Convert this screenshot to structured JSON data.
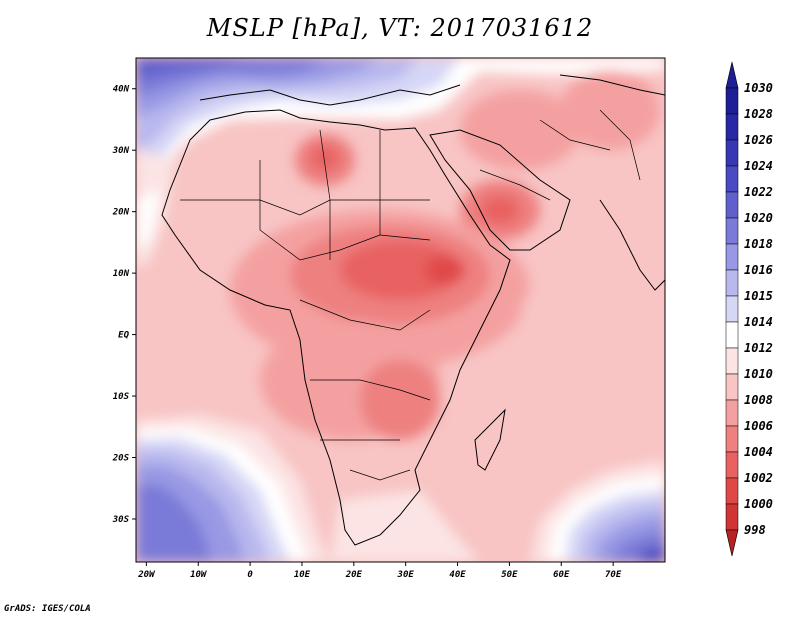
{
  "title": "MSLP [hPa], VT: 2017031612",
  "credit": "GrADS: IGES/COLA",
  "map": {
    "lon_range": [
      -22,
      80
    ],
    "lat_range": [
      -37,
      45
    ],
    "lon_ticks": [
      {
        "value": -20,
        "label": "20W"
      },
      {
        "value": -10,
        "label": "10W"
      },
      {
        "value": 0,
        "label": "0"
      },
      {
        "value": 10,
        "label": "10E"
      },
      {
        "value": 20,
        "label": "20E"
      },
      {
        "value": 30,
        "label": "30E"
      },
      {
        "value": 40,
        "label": "40E"
      },
      {
        "value": 50,
        "label": "50E"
      },
      {
        "value": 60,
        "label": "60E"
      },
      {
        "value": 70,
        "label": "70E"
      }
    ],
    "lat_ticks": [
      {
        "value": 40,
        "label": "40N"
      },
      {
        "value": 30,
        "label": "30N"
      },
      {
        "value": 20,
        "label": "20N"
      },
      {
        "value": 10,
        "label": "10N"
      },
      {
        "value": 0,
        "label": "EQ"
      },
      {
        "value": -10,
        "label": "10S"
      },
      {
        "value": -20,
        "label": "20S"
      },
      {
        "value": -30,
        "label": "30S"
      }
    ]
  },
  "colorbar": {
    "levels": [
      {
        "label": "1030",
        "color": "#1e1e96"
      },
      {
        "label": "1028",
        "color": "#2828a6"
      },
      {
        "label": "1026",
        "color": "#3737b4"
      },
      {
        "label": "1024",
        "color": "#4a4ac2"
      },
      {
        "label": "1022",
        "color": "#6060cc"
      },
      {
        "label": "1020",
        "color": "#7a7ad8"
      },
      {
        "label": "1018",
        "color": "#9898e4"
      },
      {
        "label": "1016",
        "color": "#b8b8ee"
      },
      {
        "label": "1015",
        "color": "#d6d6f6"
      },
      {
        "label": "1014",
        "color": "#ffffff"
      },
      {
        "label": "1012",
        "color": "#fce4e4"
      },
      {
        "label": "1010",
        "color": "#f8c4c4"
      },
      {
        "label": "1008",
        "color": "#f4a0a0"
      },
      {
        "label": "1006",
        "color": "#ee8080"
      },
      {
        "label": "1004",
        "color": "#e86262"
      },
      {
        "label": "1002",
        "color": "#e04848"
      },
      {
        "label": "1000",
        "color": "#d03434"
      },
      {
        "label": "998",
        "color": "#b82222"
      }
    ],
    "top_arrow_color": "#1e1e96",
    "bottom_arrow_color": "#b82222"
  }
}
